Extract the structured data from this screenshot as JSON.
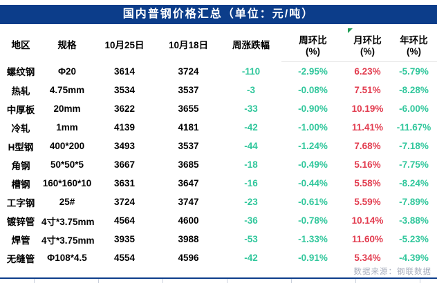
{
  "title_bar": {
    "title": "国内普钢价格汇总（单位：元/吨）"
  },
  "chart_data": {
    "type": "table",
    "title": "国内普钢价格汇总（单位：元/吨）",
    "unit": "元/吨",
    "columns": [
      {
        "label": "地区",
        "sub": ""
      },
      {
        "label": "规格",
        "sub": ""
      },
      {
        "label": "10月25日",
        "sub": ""
      },
      {
        "label": "10月18日",
        "sub": ""
      },
      {
        "label": "周涨跌幅",
        "sub": ""
      },
      {
        "label": "周环比",
        "sub": "(%)"
      },
      {
        "label": "月环比",
        "sub": "(%)"
      },
      {
        "label": "年环比",
        "sub": "(%)"
      }
    ],
    "column_keys": [
      "region",
      "spec",
      "price_oct25",
      "price_oct18",
      "weekly_change",
      "wow_pct",
      "mom_pct",
      "yoy_pct"
    ],
    "rows": [
      [
        "螺纹钢",
        "Φ20",
        "3614",
        "3724",
        "-110",
        "-2.95%",
        "6.23%",
        "-5.79%"
      ],
      [
        "热轧",
        "4.75mm",
        "3534",
        "3537",
        "-3",
        "-0.08%",
        "7.51%",
        "-8.28%"
      ],
      [
        "中厚板",
        "20mm",
        "3622",
        "3655",
        "-33",
        "-0.90%",
        "10.19%",
        "-6.00%"
      ],
      [
        "冷轧",
        "1mm",
        "4139",
        "4181",
        "-42",
        "-1.00%",
        "11.41%",
        "-11.67%"
      ],
      [
        "H型钢",
        "400*200",
        "3493",
        "3537",
        "-44",
        "-1.24%",
        "7.68%",
        "-7.18%"
      ],
      [
        "角钢",
        "50*50*5",
        "3667",
        "3685",
        "-18",
        "-0.49%",
        "5.16%",
        "-7.75%"
      ],
      [
        "槽钢",
        "160*160*10",
        "3631",
        "3647",
        "-16",
        "-0.44%",
        "5.58%",
        "-8.24%"
      ],
      [
        "工字钢",
        "25#",
        "3724",
        "3747",
        "-23",
        "-0.61%",
        "5.59%",
        "-7.89%"
      ],
      [
        "镀锌管",
        "4寸*3.75mm",
        "4564",
        "4600",
        "-36",
        "-0.78%",
        "10.14%",
        "-3.88%"
      ],
      [
        "焊管",
        "4寸*3.75mm",
        "3935",
        "3988",
        "-53",
        "-1.33%",
        "11.60%",
        "-5.23%"
      ],
      [
        "无缝管",
        "Φ108*4.5",
        "4554",
        "4596",
        "-42",
        "-0.91%",
        "5.34%",
        "-4.39%"
      ]
    ]
  },
  "footer": {
    "source": "数据来源：钢联数据"
  },
  "colors": {
    "header_bar_blue": "#0C3D8A",
    "down_green": "#31C79C",
    "up_red": "#E23B4E",
    "source_gray": "#A9AFBE",
    "marker_green": "#1F9D55",
    "tick_gray": "#C9CFDB",
    "text_black": "#000000"
  }
}
